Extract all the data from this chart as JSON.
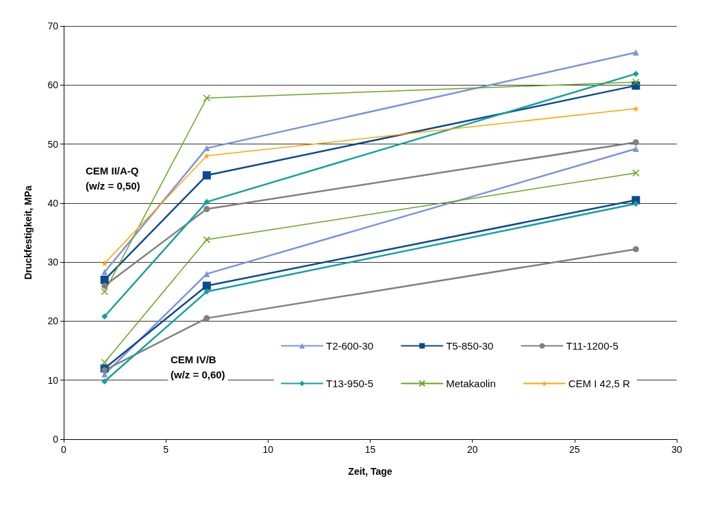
{
  "chart_data": {
    "type": "line",
    "xlabel": "Zeit, Tage",
    "ylabel": "Druckfestigkeit, MPa",
    "x": [
      2,
      7,
      28
    ],
    "series": [
      {
        "name": "T2-600-30",
        "color": "#7b93df",
        "marker": "triangle",
        "values": [
          28.3,
          49.3,
          65.5
        ]
      },
      {
        "name": "T5-850-30",
        "color": "#0b4a8f",
        "marker": "square",
        "values": [
          27,
          44.7,
          59.9
        ]
      },
      {
        "name": "T11-1200-5",
        "color": "#808080",
        "marker": "circle",
        "values": [
          26,
          39,
          50.3
        ]
      },
      {
        "name": "T13-950-5",
        "color": "#14a0a0",
        "marker": "diamond",
        "values": [
          20.8,
          40.2,
          61.9
        ]
      },
      {
        "name": "Metakaolin",
        "color": "#66a61e",
        "marker": "cross",
        "values": [
          25,
          57.8,
          60.5
        ]
      },
      {
        "name": "CEM I 42,5 R",
        "color": "#ffa500",
        "marker": "star",
        "values": [
          29.8,
          48,
          56
        ]
      },
      {
        "color": "#7b93df",
        "marker": "triangle",
        "values": [
          11,
          28,
          49.2
        ]
      },
      {
        "color": "#0b4a8f",
        "marker": "square",
        "values": [
          12,
          26,
          40.5
        ]
      },
      {
        "color": "#808080",
        "marker": "circle",
        "values": [
          11.7,
          20.5,
          32.2
        ]
      },
      {
        "color": "#14a0a0",
        "marker": "diamond",
        "values": [
          9.8,
          25,
          39.9
        ]
      },
      {
        "color": "#66a61e",
        "marker": "cross",
        "values": [
          13,
          33.8,
          45.1
        ]
      }
    ],
    "xlim": [
      0,
      30
    ],
    "xticks": [
      0,
      5,
      10,
      15,
      20,
      25,
      30
    ],
    "ylim": [
      0,
      70
    ],
    "yticks": [
      0,
      10,
      20,
      30,
      40,
      50,
      60,
      70
    ],
    "grid": "y",
    "legend": "bottom right",
    "annotations": [
      "CEM II/A-Q\n(w/z = 0,50)",
      "CEM IV/B\n(w/z = 0,60)"
    ]
  }
}
